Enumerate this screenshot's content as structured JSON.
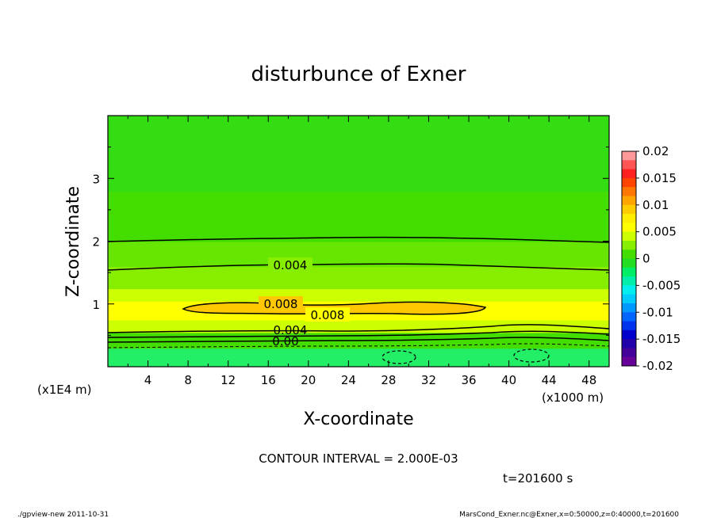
{
  "chart_data": {
    "type": "heatmap",
    "title": "disturbunce of Exner",
    "xlabel": "X-coordinate",
    "ylabel": "Z-coordinate",
    "x_unit_left": "(x1E4 m)",
    "x_unit_right": "(x1000 m)",
    "xlim": [
      0,
      50
    ],
    "ylim": [
      0,
      4
    ],
    "x_ticks": [
      "4",
      "8",
      "12",
      "16",
      "20",
      "24",
      "28",
      "32",
      "36",
      "40",
      "44",
      "48"
    ],
    "y_ticks": [
      "1",
      "2",
      "3"
    ],
    "colorbar": {
      "labels": [
        "0.02",
        "0.015",
        "0.01",
        "0.005",
        "0",
        "-0.005",
        "-0.01",
        "-0.015",
        "-0.02"
      ],
      "values": [
        0.02,
        0.015,
        0.01,
        0.005,
        0,
        -0.005,
        -0.01,
        -0.015,
        -0.02
      ],
      "colors": [
        "#ff9999",
        "#ff5555",
        "#ff2020",
        "#ff4400",
        "#ff7700",
        "#ffa500",
        "#ffcc00",
        "#ffee00",
        "#ffff00",
        "#ccff00",
        "#88ee00",
        "#44dd00",
        "#22dd22",
        "#00ee66",
        "#00eeaa",
        "#00eeee",
        "#00ccff",
        "#0099ff",
        "#0066ff",
        "#0033ee",
        "#0000cc",
        "#2200aa",
        "#440099",
        "#660099"
      ]
    },
    "contour_labels": [
      "0.004",
      "0.008",
      "0.008",
      "0.004",
      "0.00"
    ],
    "contour_interval": "CONTOUR INTERVAL = 2.000E-03",
    "time": "t=201600 s",
    "regions": [
      {
        "z_range": [
          0,
          0.3
        ],
        "value": -0.001,
        "color": "#22ee66"
      },
      {
        "z_range": [
          0.3,
          0.55
        ],
        "value": 0.002,
        "color": "#44dd00"
      },
      {
        "z_range": [
          0.55,
          0.75
        ],
        "value": 0.005,
        "color": "#ccff00"
      },
      {
        "z_range": [
          0.75,
          1.05
        ],
        "value": 0.007,
        "color": "#ffff00"
      },
      {
        "z_range": [
          1.05,
          1.25
        ],
        "value": 0.005,
        "color": "#ccff00"
      },
      {
        "z_range": [
          1.25,
          1.6
        ],
        "value": 0.004,
        "color": "#88ee00"
      },
      {
        "z_range": [
          1.6,
          2.0
        ],
        "value": 0.003,
        "color": "#66e600"
      },
      {
        "z_range": [
          2.0,
          2.8
        ],
        "value": 0.001,
        "color": "#44dd00"
      },
      {
        "z_range": [
          2.8,
          4.0
        ],
        "value": 0.0,
        "color": "#33dd11"
      }
    ]
  },
  "footer": {
    "left": "./gpview-new  2011-10-31",
    "right": "MarsCond_Exner.nc@Exner,x=0:50000,z=0:40000,t=201600"
  }
}
